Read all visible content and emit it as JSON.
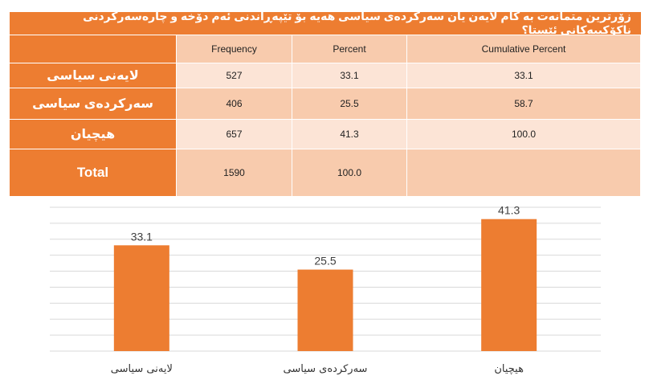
{
  "table": {
    "title": "زۆرترین متمانەت بە کام لایەن یان سەرکردەی سیاسی هەیە بۆ تێپەڕاندنی ئەم دۆخە و چارەسەرکردنی ناکۆکییەکانی ئێستا؟",
    "headers": [
      "",
      "Frequency",
      "Percent",
      "Cumulative Percent"
    ],
    "rows": [
      {
        "label": "لایەنی سیاسی",
        "frequency": "527",
        "percent": "33.1",
        "cumulative": "33.1"
      },
      {
        "label": "سەرکردەی سیاسی",
        "frequency": "406",
        "percent": "25.5",
        "cumulative": "58.7"
      },
      {
        "label": "هیچیان",
        "frequency": "657",
        "percent": "41.3",
        "cumulative": "100.0"
      },
      {
        "label": "Total",
        "frequency": "1590",
        "percent": "100.0",
        "cumulative": ""
      }
    ]
  },
  "chart_data": {
    "type": "bar",
    "categories": [
      "لایەنی سیاسی",
      "سەرکردەی سیاسی",
      "هیچیان"
    ],
    "values": [
      33.1,
      25.5,
      41.3
    ],
    "title": "",
    "xlabel": "",
    "ylabel": "",
    "ylim": [
      0,
      45
    ],
    "grid": true,
    "gridlines": [
      0,
      5,
      10,
      15,
      20,
      25,
      30,
      35,
      40,
      45
    ],
    "data_labels": [
      "33.1",
      "25.5",
      "41.3"
    ],
    "bar_color": "#ED7D31",
    "legend": "none"
  },
  "colors": {
    "accent": "#ED7D31",
    "header_fill": "#F8CBAD",
    "row_light": "#FCE4D6"
  }
}
